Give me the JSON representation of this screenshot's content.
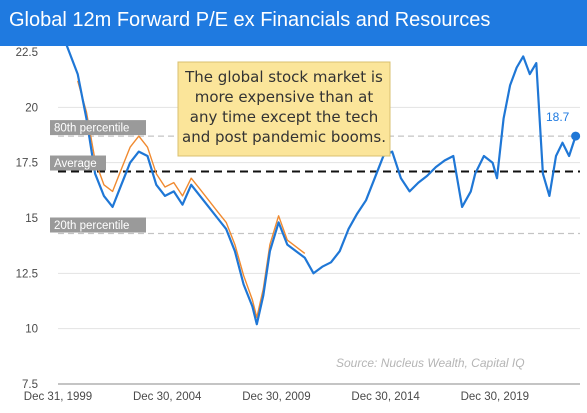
{
  "chart_data": {
    "type": "line",
    "title": "Global 12m Forward P/E ex Financials and Resources",
    "ylim": [
      7.5,
      22.5
    ],
    "yticks": [
      "22.5",
      "20",
      "17.5",
      "15",
      "12.5",
      "10",
      "7.5"
    ],
    "xticks": [
      "Dec 31, 1999",
      "Dec 30, 2004",
      "Dec 30, 2009",
      "Dec 30, 2014",
      "Dec 30, 2019"
    ],
    "reference_lines": {
      "percentile80": {
        "label": "80th percentile",
        "value": 18.7
      },
      "average": {
        "label": "Average",
        "value": 17.1
      },
      "percentile20": {
        "label": "20th percentile",
        "value": 14.3
      }
    },
    "annotation": [
      "The global stock market is",
      "more expensive than at",
      "any time except the tech",
      "and post pandemic booms."
    ],
    "last_value_label": "18.7",
    "source": "Source: Nucleus Wealth, Capital IQ",
    "series": [
      {
        "color": "#1f77d6",
        "x": [
          1999.9,
          2000.3,
          2000.8,
          2001.2,
          2001.6,
          2002.0,
          2002.4,
          2002.8,
          2003.2,
          2003.6,
          2004.0,
          2004.4,
          2004.8,
          2005.2,
          2005.6,
          2006.0,
          2006.4,
          2006.8,
          2007.2,
          2007.6,
          2008.0,
          2008.4,
          2008.8,
          2009.0,
          2009.3,
          2009.6,
          2010.0,
          2010.4,
          2010.8,
          2011.2,
          2011.6,
          2012.0,
          2012.4,
          2012.8,
          2013.2,
          2013.6,
          2014.0,
          2014.4,
          2014.8,
          2015.2,
          2015.6,
          2016.0,
          2016.4,
          2016.8,
          2017.2,
          2017.6,
          2018.0,
          2018.4,
          2018.8,
          2019.0,
          2019.4,
          2019.8,
          2020.0,
          2020.3,
          2020.6,
          2020.9,
          2021.2,
          2021.5,
          2021.8,
          2022.1,
          2022.4,
          2022.7,
          2023.0,
          2023.3,
          2023.6
        ],
        "y": [
          23.5,
          22.8,
          21.5,
          19.5,
          17.0,
          16.0,
          15.5,
          16.5,
          17.5,
          18.0,
          17.8,
          16.5,
          16.0,
          16.2,
          15.6,
          16.5,
          16.0,
          15.5,
          15.0,
          14.5,
          13.5,
          12.0,
          11.0,
          10.2,
          11.5,
          13.5,
          14.8,
          13.8,
          13.5,
          13.2,
          12.5,
          12.8,
          13.0,
          13.5,
          14.5,
          15.2,
          15.8,
          16.8,
          17.8,
          18.0,
          16.8,
          16.2,
          16.6,
          16.9,
          17.3,
          17.6,
          17.8,
          15.5,
          16.2,
          17.0,
          17.8,
          17.5,
          16.8,
          19.5,
          21.0,
          21.8,
          22.3,
          21.5,
          22.0,
          17.0,
          16.0,
          17.8,
          18.4,
          17.8,
          18.7
        ]
      },
      {
        "color": "#f08a30",
        "x": [
          2000.8,
          2001.2,
          2001.6,
          2002.0,
          2002.4,
          2002.8,
          2003.2,
          2003.6,
          2004.0,
          2004.4,
          2004.8,
          2005.2,
          2005.6,
          2006.0,
          2006.4,
          2006.8,
          2007.2,
          2007.6,
          2008.0,
          2008.4,
          2008.8,
          2009.0,
          2009.3,
          2009.6,
          2010.0,
          2010.4,
          2010.8,
          2011.2
        ],
        "y": [
          21.2,
          19.8,
          17.6,
          16.5,
          16.2,
          17.2,
          18.2,
          18.7,
          18.2,
          17.0,
          16.4,
          16.6,
          16.0,
          16.8,
          16.3,
          15.8,
          15.3,
          14.8,
          13.8,
          12.4,
          11.3,
          10.5,
          11.8,
          13.8,
          15.1,
          14.0,
          13.7,
          13.4
        ]
      }
    ]
  }
}
